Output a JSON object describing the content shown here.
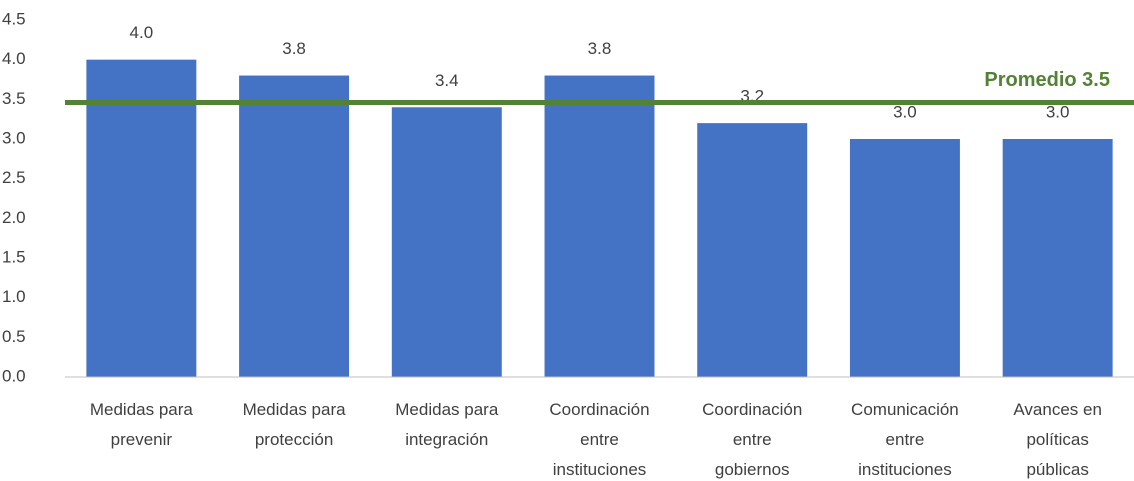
{
  "chart_data": {
    "type": "bar",
    "categories": [
      "Medidas para prevenir",
      "Medidas para protección",
      "Medidas para integración",
      "Coordinación entre instituciones",
      "Coordinación entre gobiernos",
      "Comunicación entre instituciones",
      "Avances en políticas públicas"
    ],
    "values": [
      4.0,
      3.8,
      3.4,
      3.8,
      3.2,
      3.0,
      3.0
    ],
    "value_labels": [
      "4.0",
      "3.8",
      "3.4",
      "3.8",
      "3.2",
      "3.0",
      "3.0"
    ],
    "color": "#4472c4",
    "ylim": [
      0,
      4.5
    ],
    "yticks": [
      {
        "value": 0,
        "label": "0.0"
      },
      {
        "value": 0.5,
        "label": "0.5"
      },
      {
        "value": 1,
        "label": "1.0"
      },
      {
        "value": 1.5,
        "label": "1.5"
      },
      {
        "value": 2,
        "label": "2.0"
      },
      {
        "value": 2.5,
        "label": "2.5"
      },
      {
        "value": 3,
        "label": "3.0"
      },
      {
        "value": 3.5,
        "label": "3.5"
      },
      {
        "value": 4,
        "label": "4.0"
      },
      {
        "value": 4.5,
        "label": "4.5"
      }
    ],
    "grid": false,
    "average": {
      "value": 3.46,
      "label": "Promedio 3.5",
      "color": "#548235"
    }
  }
}
